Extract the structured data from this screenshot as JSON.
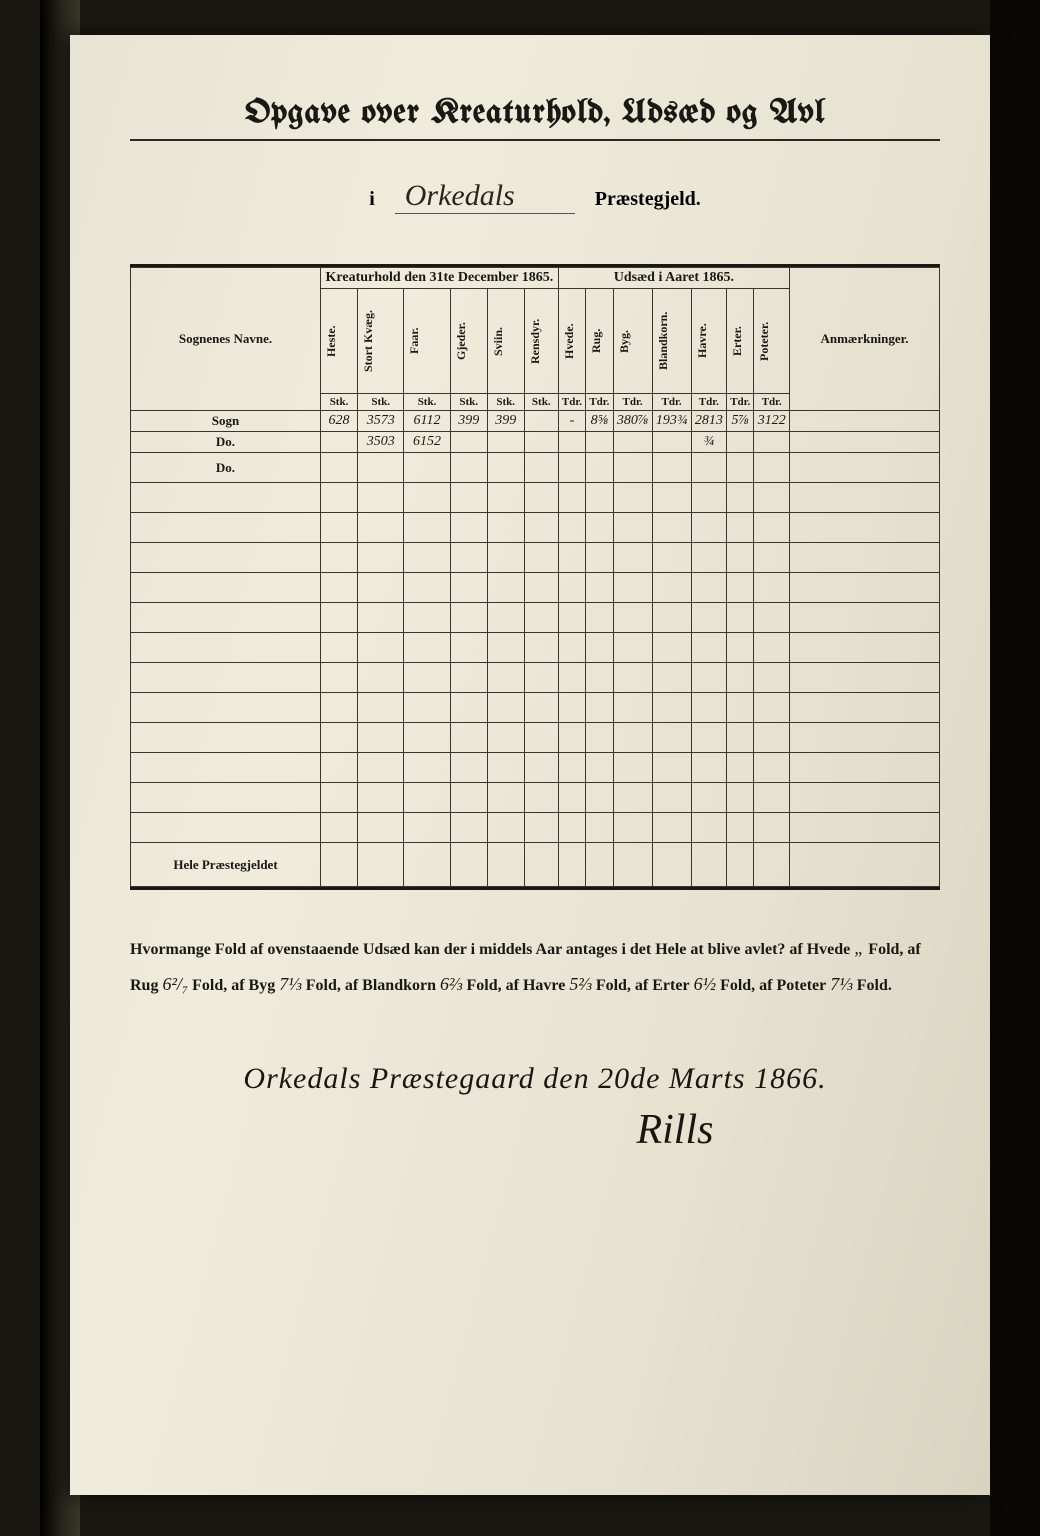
{
  "title": "Opgave over Kreaturhold, Udsæd og Avl",
  "subtitle": {
    "i": "i",
    "parish_name": "Orkedals",
    "suffix": "Præstegjeld."
  },
  "headers": {
    "sognenes": "Sognenes Navne.",
    "kreaturhold": "Kreaturhold den 31te December 1865.",
    "udsaed": "Udsæd i Aaret 1865.",
    "anm": "Anmærkninger."
  },
  "kreatur_cols": [
    "Heste.",
    "Stort Kvæg.",
    "Faar.",
    "Gjeder.",
    "Sviin.",
    "Rensdyr."
  ],
  "udsaed_cols": [
    "Hvede.",
    "Rug.",
    "Byg.",
    "Blandkorn.",
    "Havre.",
    "Erter.",
    "Poteter."
  ],
  "unit_kreatur": "Stk.",
  "unit_udsaed": "Tdr.",
  "rows": {
    "r1_label": "Sogn",
    "r1": [
      "628",
      "3573",
      "6112",
      "399",
      "399",
      "",
      "-",
      "8⅝",
      "380⅞",
      "193¾",
      "2813",
      "5⅞",
      "3122"
    ],
    "r1b": [
      "",
      "3503",
      "6152",
      "",
      "",
      "",
      "",
      "",
      "",
      "",
      "¾",
      "",
      ""
    ],
    "r2_label": "Do.",
    "r3_label": "Do."
  },
  "footer_label": "Hele Præstegjeldet",
  "para": {
    "lead": "Hvormange Fold af ovenstaaende Udsæd kan der i middels Aar antages i det Hele at blive avlet? af Hvede",
    "hvede": "„",
    "t_fold": "Fold, af",
    "rug_l": "Rug",
    "rug_v": "6²/₇",
    "byg_l": "Fold, af Byg",
    "byg_v": "7⅓",
    "bland_l": "Fold, af Blandkorn",
    "bland_v": "6⅔",
    "havre_l": "Fold, af Havre",
    "havre_v": "5⅔",
    "erter_l": "Fold, af Erter",
    "erter_v": "6½",
    "pot_l": "Fold, af Poteter",
    "pot_v": "7⅓",
    "end": "Fold."
  },
  "signature": {
    "place_date": "Orkedals Præstegaard den 20de Marts 1866.",
    "name": "Rills"
  },
  "colors": {
    "paper": "#e8e4d4",
    "ink": "#1a1814",
    "rule": "#3a362c",
    "bg": "#1a1812"
  }
}
